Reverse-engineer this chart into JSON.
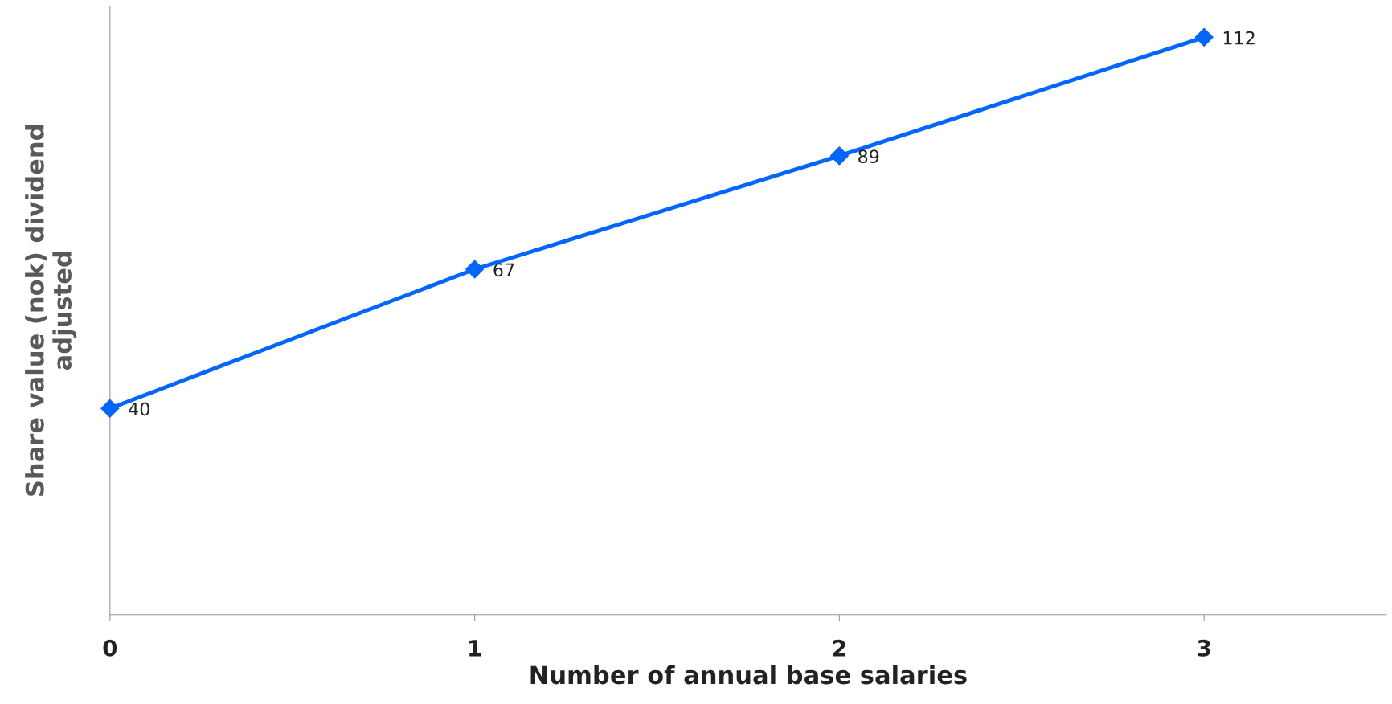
{
  "chart_data": {
    "type": "line",
    "xlabel": "Number of annual base salaries",
    "ylabel": "Share value (nok) dividend\nadjusted",
    "x": [
      0,
      1,
      2,
      3
    ],
    "series": [
      {
        "color": "#0066ff",
        "values": [
          40,
          67,
          89,
          112
        ]
      }
    ],
    "xlim": [
      0,
      3.5
    ],
    "xticks": [
      0,
      1,
      2,
      3
    ],
    "ylim": [
      0,
      118
    ],
    "tick_labels": "x",
    "marker": "diamond",
    "line_style": "solid",
    "data_labels": true
  }
}
